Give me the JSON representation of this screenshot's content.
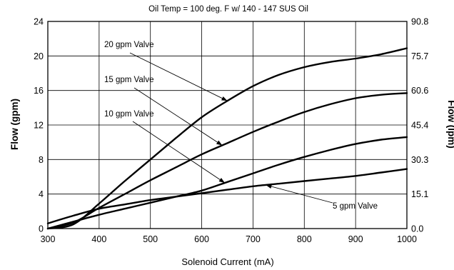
{
  "chart_data": {
    "type": "line",
    "title": "Oil Temp = 100 deg. F w/ 140 - 147 SUS Oil",
    "xlabel": "Solenoid Current (mA)",
    "ylabel": "Flow (gpm)",
    "y2label": "Flow (lpm)",
    "xlim": [
      300,
      1000
    ],
    "ylim": [
      0,
      24
    ],
    "x_ticks": [
      "300",
      "400",
      "500",
      "600",
      "700",
      "800",
      "900",
      "1000"
    ],
    "y_ticks": [
      "0",
      "4",
      "8",
      "12",
      "16",
      "20",
      "24"
    ],
    "y2_ticks": [
      "0.0",
      "15.1",
      "30.3",
      "45.4",
      "60.6",
      "75.7",
      "90.8"
    ],
    "grid": true,
    "x": [
      300,
      350,
      400,
      450,
      500,
      550,
      600,
      650,
      700,
      750,
      800,
      850,
      900,
      950,
      1000
    ],
    "series": [
      {
        "name": "20 gpm Valve",
        "values": [
          0,
          0.5,
          2.9,
          5.5,
          8.0,
          10.5,
          12.9,
          14.8,
          16.5,
          17.8,
          18.7,
          19.3,
          19.7,
          20.2,
          20.9
        ]
      },
      {
        "name": "15 gpm Valve",
        "values": [
          0,
          0.7,
          2.4,
          4.0,
          5.6,
          7.1,
          8.6,
          9.9,
          11.2,
          12.4,
          13.5,
          14.4,
          15.1,
          15.5,
          15.7
        ]
      },
      {
        "name": "10 gpm Valve",
        "values": [
          0,
          0.8,
          1.6,
          2.3,
          3.0,
          3.7,
          4.4,
          5.4,
          6.4,
          7.4,
          8.3,
          9.1,
          9.8,
          10.3,
          10.6
        ]
      },
      {
        "name": "5 gpm Valve",
        "values": [
          0.6,
          1.5,
          2.3,
          2.8,
          3.3,
          3.7,
          4.1,
          4.5,
          4.9,
          5.2,
          5.5,
          5.8,
          6.1,
          6.5,
          6.9
        ]
      }
    ],
    "annotations": [
      {
        "series": 0,
        "label": "20 gpm Valve",
        "point_x": 650
      },
      {
        "series": 1,
        "label": "15 gpm Valve",
        "point_x": 640
      },
      {
        "series": 2,
        "label": "10 gpm Valve",
        "point_x": 645
      },
      {
        "series": 3,
        "label": "5 gpm Valve",
        "point_x": 725
      }
    ]
  }
}
